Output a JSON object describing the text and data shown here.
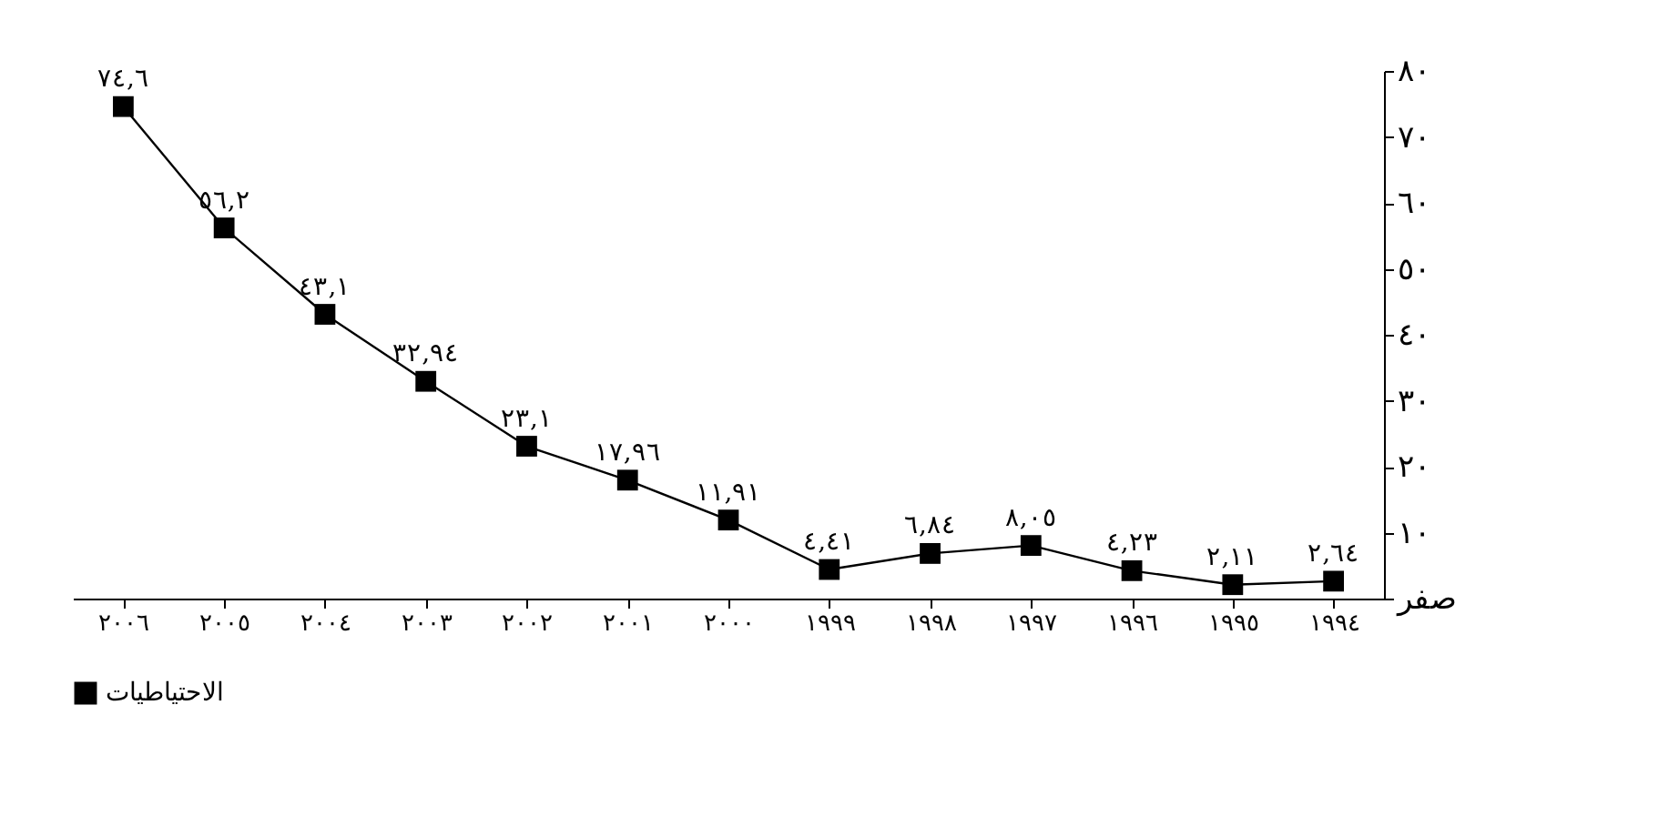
{
  "chart_data": {
    "type": "line",
    "categories": [
      "٢٠٠٦",
      "٢٠٠٥",
      "٢٠٠٤",
      "٢٠٠٣",
      "٢٠٠٢",
      "٢٠٠١",
      "٢٠٠٠",
      "١٩٩٩",
      "١٩٩٨",
      "١٩٩٧",
      "١٩٩٦",
      "١٩٩٥",
      "١٩٩٤"
    ],
    "series": [
      {
        "name": "الاحتياطيات",
        "color": "#000000",
        "values": [
          74.6,
          56.2,
          43.1,
          32.94,
          23.1,
          17.96,
          11.91,
          4.41,
          6.84,
          8.05,
          4.23,
          2.11,
          2.64
        ],
        "value_labels": [
          "٧٤,٦",
          "٥٦,٢",
          "٤٣,١",
          "٣٢,٩٤",
          "٢٣,١",
          "١٧,٩٦",
          "١١,٩١",
          "٤,٤١",
          "٦,٨٤",
          "٨,٠٥",
          "٤,٢٣",
          "٢,١١",
          "٢,٦٤"
        ]
      }
    ],
    "ylim": [
      0,
      80
    ],
    "yticks": [
      {
        "value": 0,
        "label": "صفر"
      },
      {
        "value": 10,
        "label": "١٠"
      },
      {
        "value": 20,
        "label": "٢٠"
      },
      {
        "value": 30,
        "label": "٣٠"
      },
      {
        "value": 40,
        "label": "٤٠"
      },
      {
        "value": 50,
        "label": "٥٠"
      },
      {
        "value": 60,
        "label": "٦٠"
      },
      {
        "value": 70,
        "label": "٧٠"
      },
      {
        "value": 80,
        "label": "٨٠"
      }
    ],
    "grid": false,
    "legend": "bottom",
    "marker": "square",
    "line_style": "solid"
  }
}
